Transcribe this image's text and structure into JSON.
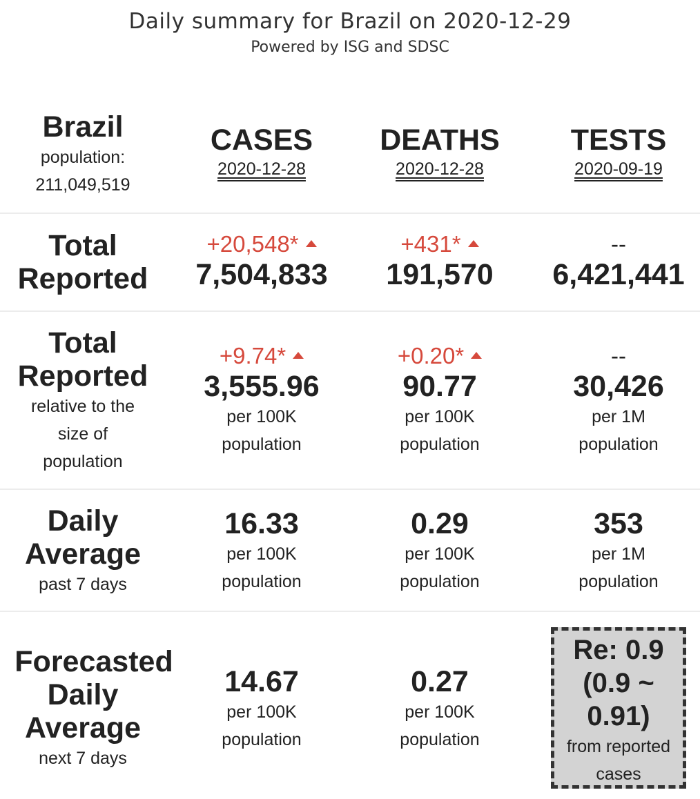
{
  "header": {
    "title": "Daily summary for Brazil on 2020-12-29",
    "subtitle": "Powered by ISG and SDSC"
  },
  "country": {
    "name": "Brazil",
    "population_label": "population:",
    "population": "211,049,519"
  },
  "columns": [
    {
      "name": "CASES",
      "date": "2020-12-28"
    },
    {
      "name": "DEATHS",
      "date": "2020-12-28"
    },
    {
      "name": "TESTS",
      "date": "2020-09-19"
    }
  ],
  "rows": {
    "total": {
      "label_line1": "Total",
      "label_line2": "Reported",
      "cases": {
        "delta": "+20,548*",
        "value": "7,504,833"
      },
      "deaths": {
        "delta": "+431*",
        "value": "191,570"
      },
      "tests": {
        "delta": "--",
        "value": "6,421,441"
      }
    },
    "relative": {
      "label_line1": "Total",
      "label_line2": "Reported",
      "label_sub1": "relative to the",
      "label_sub2": "size of",
      "label_sub3": "population",
      "cases": {
        "delta": "+9.74*",
        "value": "3,555.96",
        "unit1": "per 100K",
        "unit2": "population"
      },
      "deaths": {
        "delta": "+0.20*",
        "value": "90.77",
        "unit1": "per 100K",
        "unit2": "population"
      },
      "tests": {
        "delta": "--",
        "value": "30,426",
        "unit1": "per 1M",
        "unit2": "population"
      }
    },
    "daily": {
      "label_line1": "Daily",
      "label_line2": "Average",
      "label_sub": "past 7 days",
      "cases": {
        "value": "16.33",
        "unit1": "per 100K",
        "unit2": "population"
      },
      "deaths": {
        "value": "0.29",
        "unit1": "per 100K",
        "unit2": "population"
      },
      "tests": {
        "value": "353",
        "unit1": "per 1M",
        "unit2": "population"
      }
    },
    "forecast": {
      "label_line1": "Forecasted",
      "label_line2": "Daily",
      "label_line3": "Average",
      "label_sub": "next 7 days",
      "cases": {
        "value": "14.67",
        "unit1": "per 100K",
        "unit2": "population"
      },
      "deaths": {
        "value": "0.27",
        "unit1": "per 100K",
        "unit2": "population"
      },
      "re": {
        "line1": "Re: 0.9",
        "line2": "(0.9 ~",
        "line3": "0.91)",
        "note1": "from reported",
        "note2": "cases"
      }
    }
  },
  "colors": {
    "increase": "#d6493c",
    "re_box_bg": "#d3d3d3",
    "text": "#222222"
  },
  "icons": {
    "increase": "triangle-up-icon"
  }
}
